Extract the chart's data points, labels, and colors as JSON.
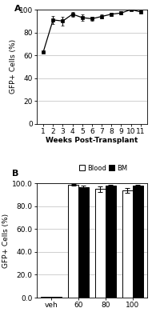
{
  "panel_a": {
    "x": [
      1,
      2,
      3,
      4,
      5,
      6,
      7,
      8,
      9,
      10,
      11
    ],
    "y": [
      63,
      91,
      90,
      96,
      93,
      92,
      94,
      96,
      97,
      100,
      98
    ],
    "yerr": [
      0,
      3.5,
      4,
      2,
      2.5,
      2,
      2,
      1.5,
      1.5,
      0.5,
      1
    ],
    "xlabel": "Weeks Post-Transplant",
    "ylabel": "GFP+ Cells (%)",
    "ylim": [
      0,
      100
    ],
    "yticks": [
      0,
      20,
      40,
      60,
      80,
      100
    ],
    "xticks": [
      1,
      2,
      3,
      4,
      5,
      6,
      7,
      8,
      9,
      10,
      11
    ],
    "label": "A"
  },
  "panel_b": {
    "categories": [
      "veh",
      "60",
      "80",
      "100"
    ],
    "blood_values": [
      0.5,
      98.5,
      95.0,
      94.0
    ],
    "bm_values": [
      0.5,
      96.5,
      98.0,
      98.0
    ],
    "blood_err": [
      0.1,
      0.8,
      2.5,
      2.0
    ],
    "bm_err": [
      0.1,
      1.2,
      1.0,
      0.8
    ],
    "ylabel": "GFP+ Cells (%)",
    "ylim": [
      0.0,
      100.0
    ],
    "yticks": [
      0.0,
      20.0,
      40.0,
      60.0,
      80.0,
      100.0
    ],
    "label": "B",
    "legend_labels": [
      "Blood",
      "BM"
    ],
    "blood_color": "white",
    "bm_color": "black",
    "bar_edge_color": "black"
  },
  "line_color": "#000000",
  "background_color": "#ffffff",
  "grid_color": "#c8c8c8",
  "font_size": 6.5,
  "label_font_size": 8
}
